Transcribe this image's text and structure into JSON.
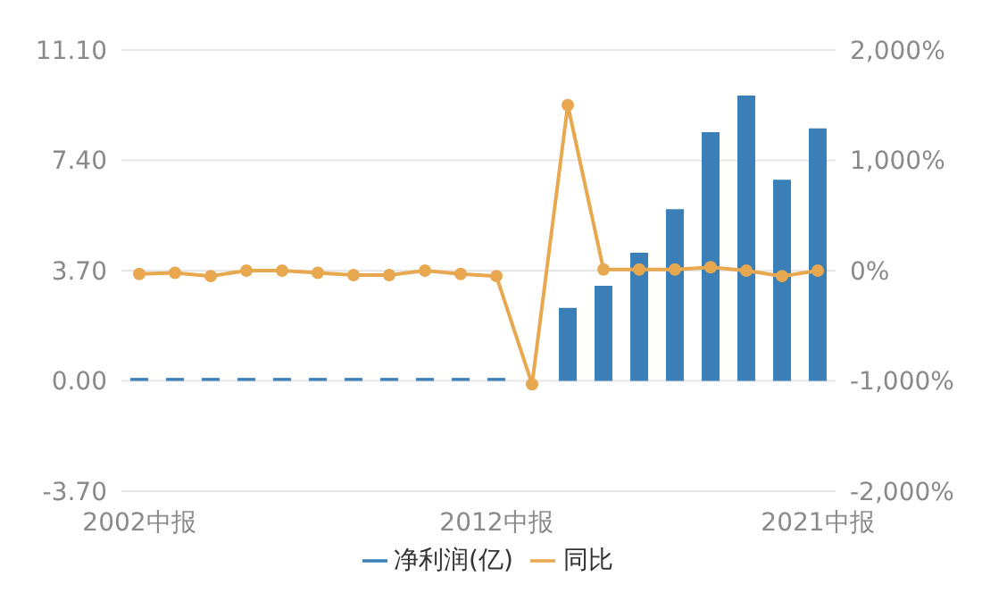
{
  "chart_data": {
    "type": "bar",
    "categories": [
      "2002中报",
      null,
      null,
      null,
      null,
      null,
      null,
      null,
      null,
      null,
      "2012中报",
      null,
      null,
      null,
      null,
      null,
      null,
      null,
      null,
      "2021中报"
    ],
    "series": [
      {
        "name": "净利润(亿)",
        "color": "#3a7fb8",
        "values": [
          0.1,
          0.1,
          0.1,
          0.1,
          0.1,
          0.1,
          0.1,
          0.1,
          0.1,
          0.1,
          0.1,
          null,
          2.45,
          3.19,
          4.3,
          5.76,
          8.34,
          9.57,
          6.75,
          8.47
        ]
      },
      {
        "name": "同比",
        "type": "line",
        "axis": "y2",
        "color": "#e8a850",
        "values": [
          -30,
          -20,
          -50,
          0,
          0,
          -20,
          -40,
          -40,
          0,
          -30,
          -50,
          -1030,
          1500,
          10,
          10,
          10,
          30,
          0,
          -50,
          0
        ]
      }
    ],
    "ylim": [
      -3.7,
      11.1
    ],
    "yticks": [
      {
        "value": -3.7,
        "label": "-3.70"
      },
      {
        "value": 0,
        "label": "0.00"
      },
      {
        "value": 3.7,
        "label": "3.70"
      },
      {
        "value": 7.4,
        "label": "7.40"
      },
      {
        "value": 11.1,
        "label": "11.10"
      }
    ],
    "y2lim": [
      -2000,
      2000
    ],
    "y2ticks": [
      {
        "value": -2000,
        "label": "-2,000%"
      },
      {
        "value": -1000,
        "label": "-1,000%"
      },
      {
        "value": 0,
        "label": "0%"
      },
      {
        "value": 1000,
        "label": "1,000%"
      },
      {
        "value": 2000,
        "label": "2,000%"
      }
    ],
    "grid": "y",
    "legend": "bottom",
    "marker": "circle",
    "line_style": "solid"
  }
}
